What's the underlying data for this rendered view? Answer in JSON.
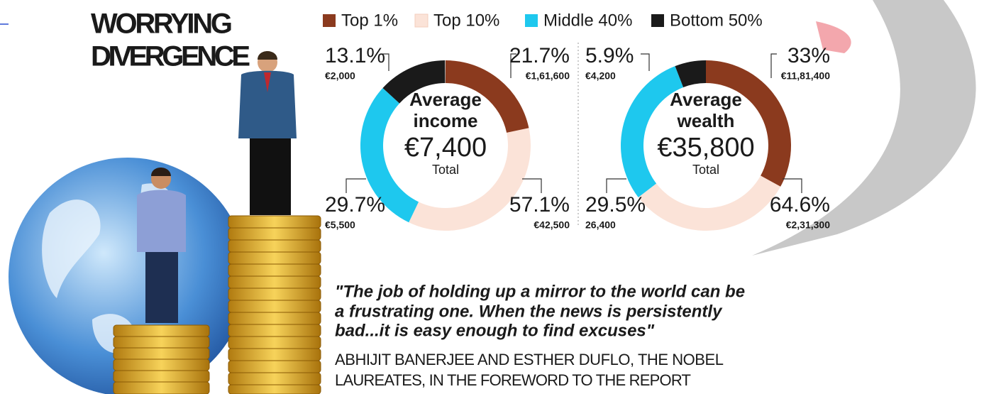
{
  "headline": [
    "WORRYING",
    "DIVERGENCE"
  ],
  "chart_data": [
    {
      "type": "donut",
      "title": [
        "Average",
        "income"
      ],
      "total": "€7,400",
      "total_label": "Total",
      "categories": [
        "Top 1%",
        "Top 10%",
        "Middle 40%",
        "Bottom 50%"
      ],
      "colors": [
        "#8b3a1e",
        "#fbe3d8",
        "#1ec8ee",
        "#1a1a1a"
      ],
      "values": [
        21.7,
        57.1,
        29.7,
        13.1
      ],
      "value_labels": [
        "21.7%",
        "57.1%",
        "29.7%",
        "13.1%"
      ],
      "amounts": [
        "€1,61,600",
        "€42,500",
        "€5,500",
        "€2,000"
      ]
    },
    {
      "type": "donut",
      "title": [
        "Average",
        "wealth"
      ],
      "total": "€35,800",
      "total_label": "Total",
      "categories": [
        "Top 1%",
        "Top 10%",
        "Middle 40%",
        "Bottom 50%"
      ],
      "colors": [
        "#8b3a1e",
        "#fbe3d8",
        "#1ec8ee",
        "#1a1a1a"
      ],
      "values": [
        33,
        64.6,
        29.5,
        5.9
      ],
      "value_labels": [
        "33%",
        "64.6%",
        "29.5%",
        "5.9%"
      ],
      "amounts": [
        "€11,81,400",
        "€2,31,300",
        "26,400",
        "€4,200"
      ]
    }
  ],
  "quote": {
    "lines": [
      "\"The job of holding up a mirror to the world can be",
      "a frustrating one. When the news is persistently",
      "bad...it is easy enough to find excuses\""
    ],
    "attribution": [
      "ABHIJIT BANERJEE AND ESTHER DUFLO, THE NOBEL",
      "LAUREATES, IN THE FOREWORD TO THE REPORT"
    ]
  }
}
